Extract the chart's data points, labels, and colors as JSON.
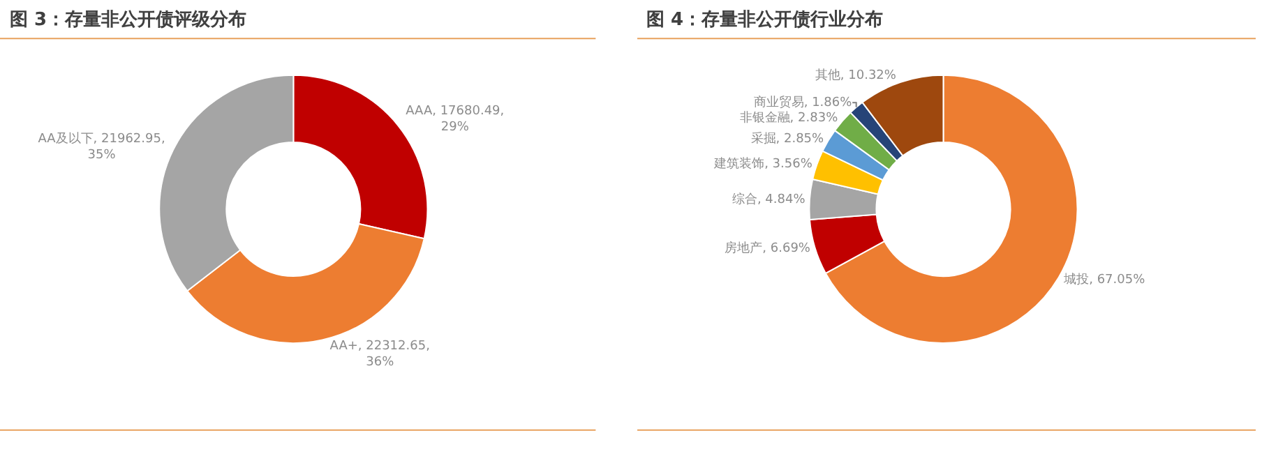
{
  "chart_data": [
    {
      "type": "donut",
      "title": "图 3：存量非公开债评级分布",
      "categories": [
        "AAA",
        "AA+",
        "AA及以下"
      ],
      "values": [
        17680.49,
        22312.65,
        21962.95
      ],
      "colors": [
        "#c00000",
        "#ed7d31",
        "#a5a5a5"
      ],
      "value_labels": [
        "17680.49, 29%",
        "22312.65, 36%",
        "21962.95, 35%"
      ]
    },
    {
      "type": "donut",
      "title": "图 4：存量非公开债行业分布",
      "categories": [
        "城投",
        "房地产",
        "综合",
        "建筑装饰",
        "采掘",
        "非银金融",
        "商业贸易",
        "其他"
      ],
      "values": [
        67.05,
        6.69,
        4.84,
        3.56,
        2.85,
        2.83,
        1.86,
        10.32
      ],
      "colors": [
        "#ed7d31",
        "#c00000",
        "#a5a5a5",
        "#ffc000",
        "#5b9bd5",
        "#70ad47",
        "#264478",
        "#9e480e"
      ],
      "value_labels": [
        "67.05%",
        "6.69%",
        "4.84%",
        "3.56%",
        "2.85%",
        "2.83%",
        "1.86%",
        "10.32%"
      ]
    }
  ]
}
